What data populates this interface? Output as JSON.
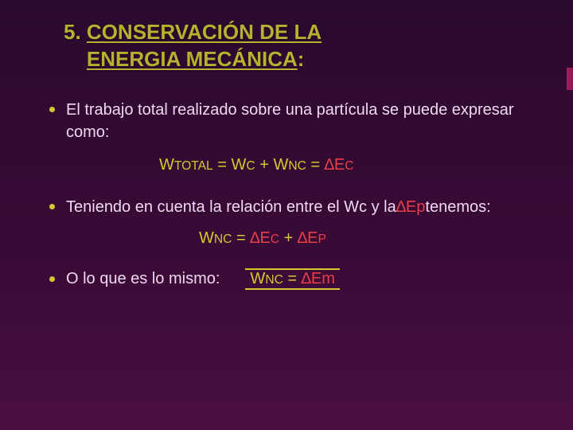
{
  "colors": {
    "title": "#b8b030",
    "body": "#f0d8f0",
    "formula": "#d4c830",
    "accent_red": "#e8404a",
    "bullet_dot": "#d4c830",
    "final_border": "#d4c830"
  },
  "title": {
    "prefix": "5. ",
    "line1": "CONSERVACIÓN DE LA",
    "line2": "ENERGIA MECÁNICA",
    "after": ":"
  },
  "bullets": [
    {
      "text": "El trabajo total realizado sobre una partícula se puede expresar como:"
    },
    {
      "text_before": "Teniendo en cuenta la relación entre el Wc y la ",
      "delta_var": "∆Ep",
      "text_after": " tenemos:"
    },
    {
      "text": "O lo que es lo mismo:"
    }
  ],
  "formulas": {
    "total": {
      "lhs": "W",
      "lhs_sub": "TOTAL",
      "eq1": " = W",
      "c_sub": "C",
      "plus": " + W",
      "nc_sub": "NC",
      "eq2": " = ",
      "rhs": "∆E",
      "rhs_sub": "C"
    },
    "wnc": {
      "lhs": "W",
      "lhs_sub": "NC",
      "eq": " = ",
      "t1": "∆E",
      "t1_sub": "C",
      "plus": " + ",
      "t2": "∆E",
      "t2_sub": "P"
    },
    "final": {
      "lhs": "W",
      "lhs_sub": "NC",
      "eq": " = ",
      "rhs": "∆Em"
    }
  }
}
